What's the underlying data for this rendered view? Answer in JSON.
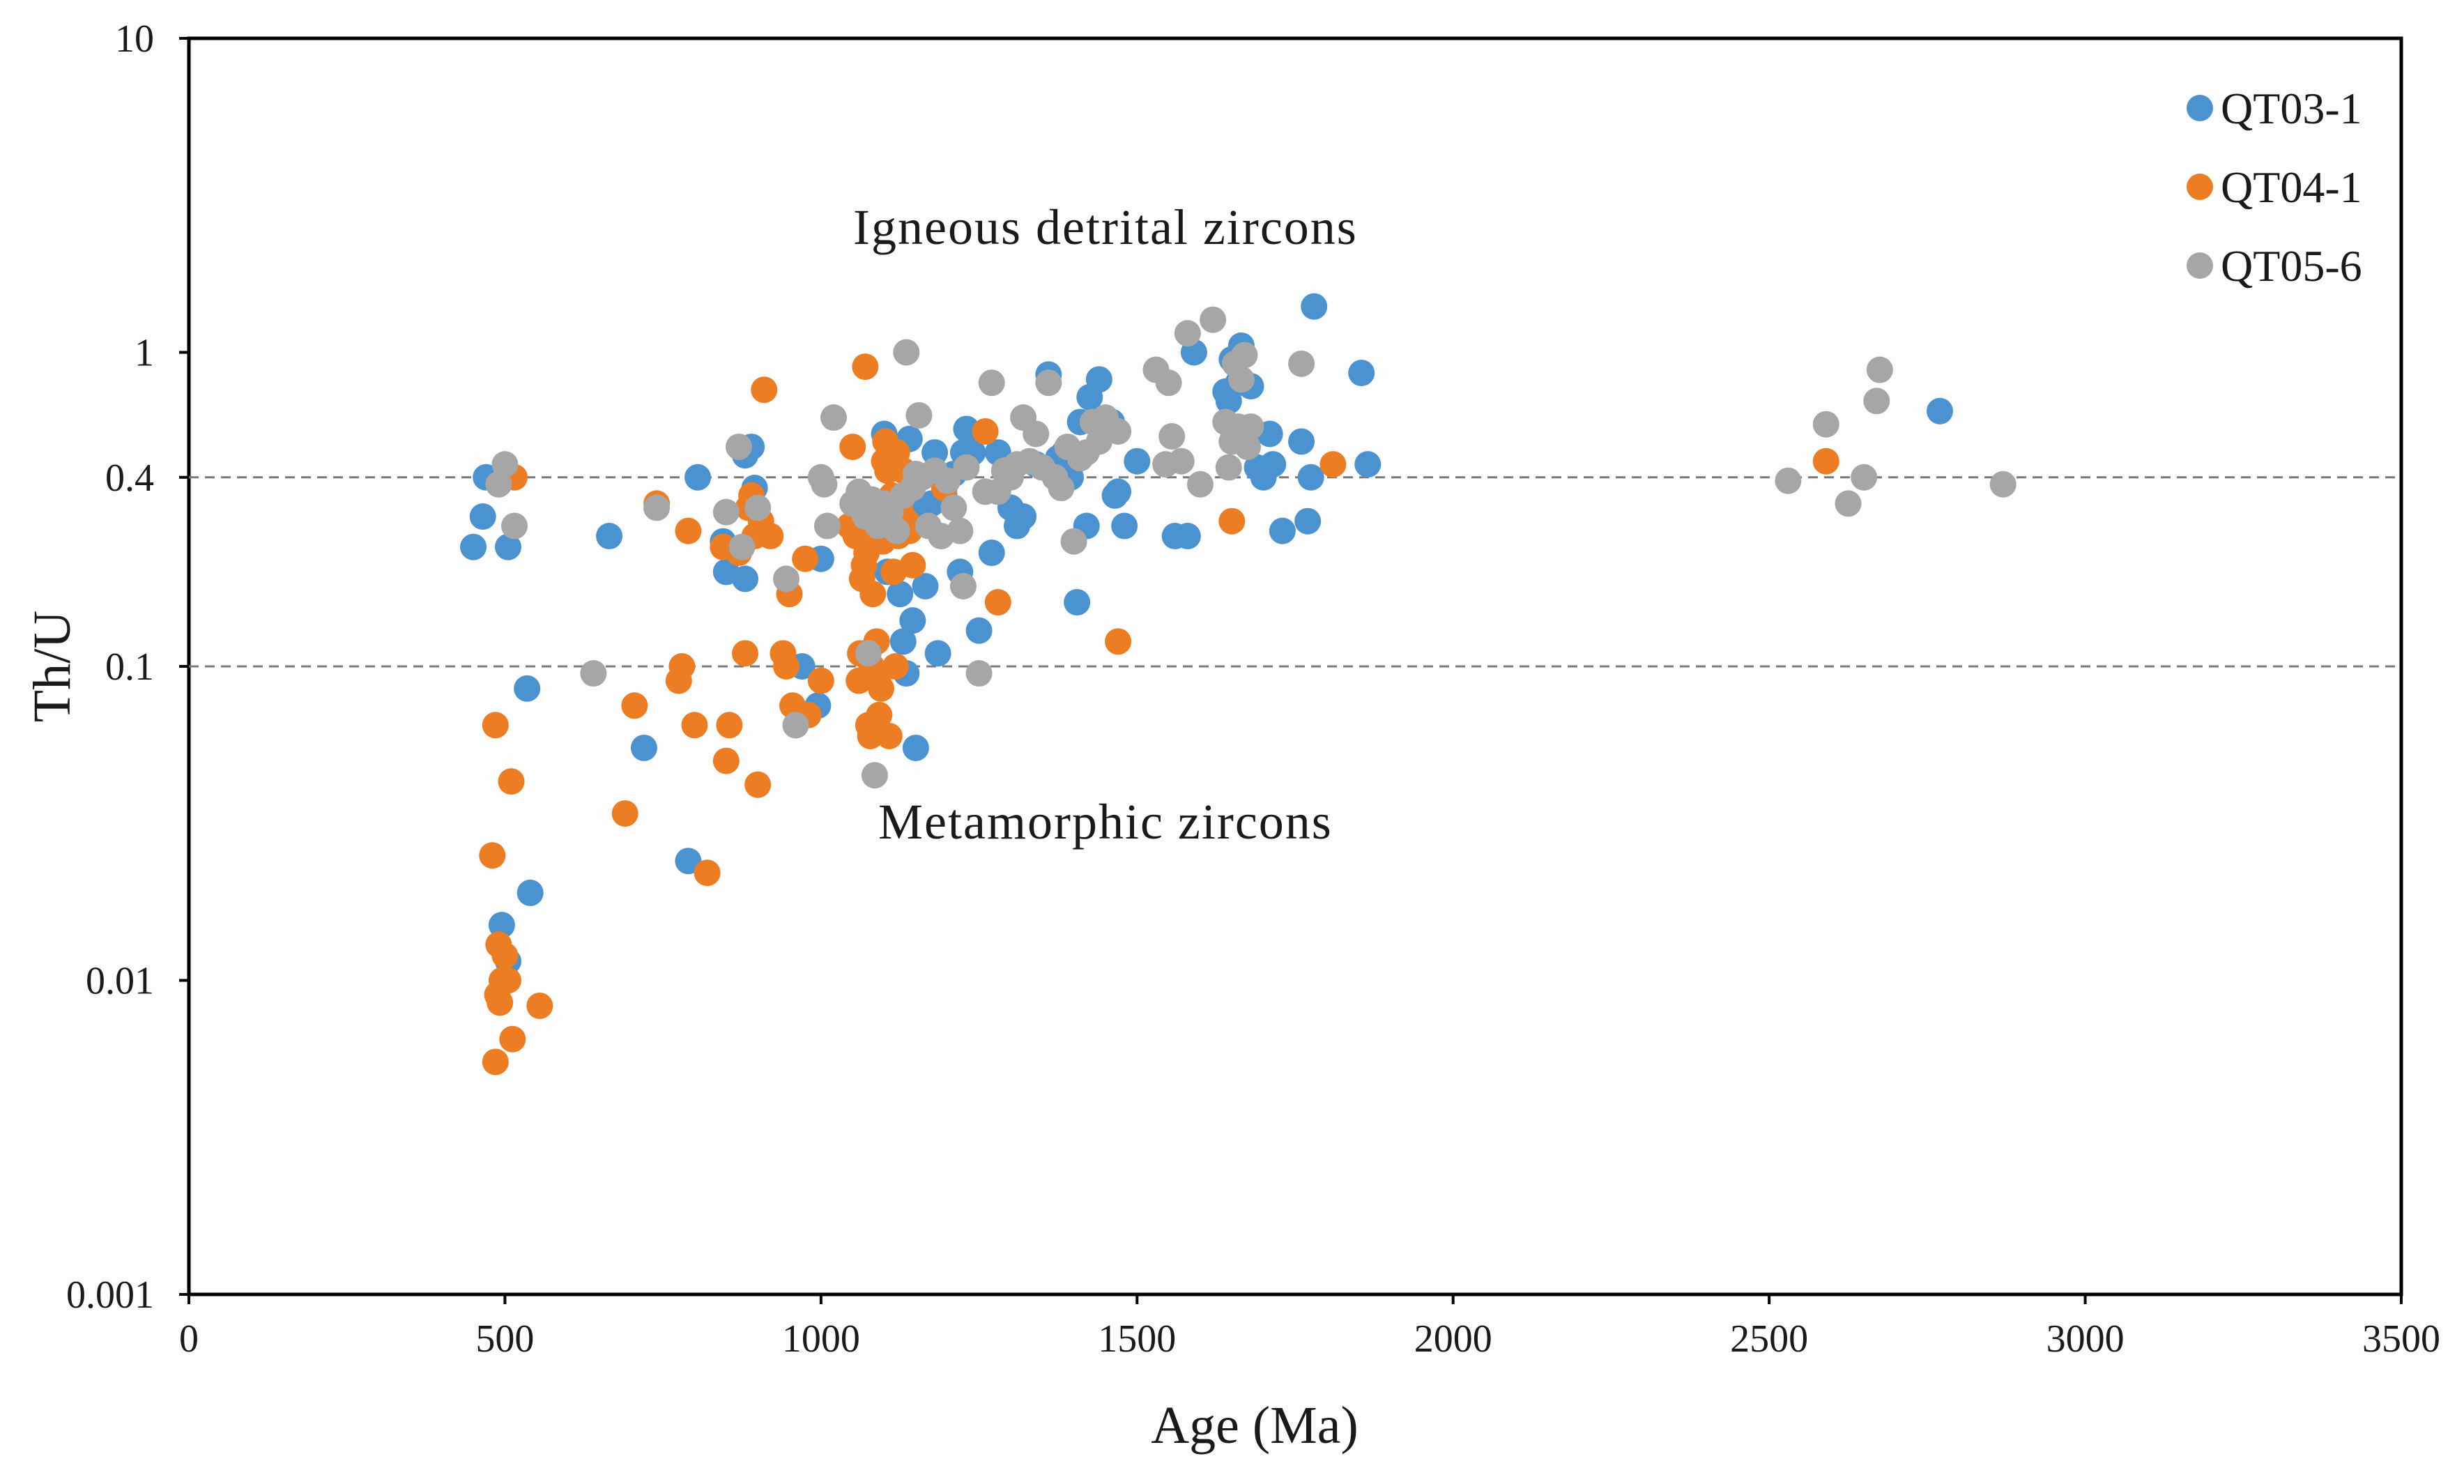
{
  "chart_data": {
    "type": "scatter",
    "title": "",
    "xlabel": "Age (Ma)",
    "ylabel": "Th/U",
    "xlim": [
      0,
      3500
    ],
    "ylim": [
      0.001,
      10
    ],
    "yscale": "log",
    "x_ticks": [
      {
        "value": 0,
        "label": "0"
      },
      {
        "value": 500,
        "label": "500"
      },
      {
        "value": 1000,
        "label": "1000"
      },
      {
        "value": 1500,
        "label": "1500"
      },
      {
        "value": 2000,
        "label": "2000"
      },
      {
        "value": 2500,
        "label": "2500"
      },
      {
        "value": 3000,
        "label": "3000"
      },
      {
        "value": 3500,
        "label": "3500"
      }
    ],
    "y_ticks": [
      {
        "value": 0.001,
        "label": "0.001"
      },
      {
        "value": 0.01,
        "label": "0.01"
      },
      {
        "value": 0.1,
        "label": "0.1"
      },
      {
        "value": 0.4,
        "label": "0.4"
      },
      {
        "value": 1,
        "label": "1"
      },
      {
        "value": 10,
        "label": "10"
      }
    ],
    "reference_lines": [
      {
        "y": 0.4,
        "style": "dashed"
      },
      {
        "y": 0.1,
        "style": "dashed"
      }
    ],
    "annotations": [
      {
        "text": "Igneous detrital zircons",
        "x": 1450,
        "y": 2.5
      },
      {
        "text": "Metamorphic zircons",
        "x": 1450,
        "y": 0.032
      }
    ],
    "legend": {
      "position": "top-right"
    },
    "series": [
      {
        "name": "QT03-1",
        "color": "#4a93d0",
        "points": [
          [
            450,
            0.24
          ],
          [
            465,
            0.3
          ],
          [
            470,
            0.4
          ],
          [
            505,
            0.24
          ],
          [
            535,
            0.085
          ],
          [
            540,
            0.019
          ],
          [
            495,
            0.015
          ],
          [
            505,
            0.0115
          ],
          [
            665,
            0.26
          ],
          [
            720,
            0.055
          ],
          [
            790,
            0.024
          ],
          [
            805,
            0.4
          ],
          [
            845,
            0.25
          ],
          [
            850,
            0.2
          ],
          [
            880,
            0.19
          ],
          [
            880,
            0.47
          ],
          [
            890,
            0.5
          ],
          [
            895,
            0.37
          ],
          [
            970,
            0.1
          ],
          [
            995,
            0.075
          ],
          [
            1000,
            0.22
          ],
          [
            1100,
            0.55
          ],
          [
            1105,
            0.2
          ],
          [
            1110,
            0.48
          ],
          [
            1115,
            0.28
          ],
          [
            1125,
            0.17
          ],
          [
            1130,
            0.12
          ],
          [
            1135,
            0.095
          ],
          [
            1140,
            0.53
          ],
          [
            1145,
            0.14
          ],
          [
            1150,
            0.055
          ],
          [
            1155,
            0.3
          ],
          [
            1160,
            0.32
          ],
          [
            1165,
            0.18
          ],
          [
            1175,
            0.33
          ],
          [
            1180,
            0.48
          ],
          [
            1185,
            0.11
          ],
          [
            1195,
            0.35
          ],
          [
            1210,
            0.41
          ],
          [
            1220,
            0.2
          ],
          [
            1225,
            0.48
          ],
          [
            1230,
            0.57
          ],
          [
            1240,
            0.48
          ],
          [
            1250,
            0.13
          ],
          [
            1270,
            0.23
          ],
          [
            1280,
            0.48
          ],
          [
            1290,
            0.42
          ],
          [
            1300,
            0.32
          ],
          [
            1310,
            0.28
          ],
          [
            1320,
            0.3
          ],
          [
            1340,
            0.44
          ],
          [
            1360,
            0.85
          ],
          [
            1375,
            0.46
          ],
          [
            1385,
            0.48
          ],
          [
            1395,
            0.4
          ],
          [
            1405,
            0.16
          ],
          [
            1410,
            0.6
          ],
          [
            1420,
            0.28
          ],
          [
            1425,
            0.72
          ],
          [
            1440,
            0.82
          ],
          [
            1460,
            0.6
          ],
          [
            1465,
            0.35
          ],
          [
            1470,
            0.36
          ],
          [
            1480,
            0.28
          ],
          [
            1500,
            0.45
          ],
          [
            1560,
            0.26
          ],
          [
            1580,
            0.26
          ],
          [
            1590,
            1.0
          ],
          [
            1640,
            0.75
          ],
          [
            1645,
            0.7
          ],
          [
            1650,
            0.95
          ],
          [
            1660,
            0.8
          ],
          [
            1665,
            1.05
          ],
          [
            1680,
            0.78
          ],
          [
            1690,
            0.43
          ],
          [
            1700,
            0.4
          ],
          [
            1710,
            0.55
          ],
          [
            1715,
            0.44
          ],
          [
            1730,
            0.27
          ],
          [
            1760,
            0.52
          ],
          [
            1770,
            0.29
          ],
          [
            1775,
            0.4
          ],
          [
            1780,
            1.4
          ],
          [
            1855,
            0.86
          ],
          [
            1865,
            0.44
          ],
          [
            2770,
            0.65
          ]
        ]
      },
      {
        "name": "QT04-1",
        "color": "#ed7d23",
        "points": [
          [
            480,
            0.025
          ],
          [
            485,
            0.065
          ],
          [
            485,
            0.0055
          ],
          [
            488,
            0.009
          ],
          [
            490,
            0.013
          ],
          [
            492,
            0.0085
          ],
          [
            495,
            0.01
          ],
          [
            500,
            0.012
          ],
          [
            505,
            0.01
          ],
          [
            510,
            0.043
          ],
          [
            512,
            0.0065
          ],
          [
            515,
            0.4
          ],
          [
            555,
            0.0083
          ],
          [
            690,
            0.034
          ],
          [
            705,
            0.075
          ],
          [
            740,
            0.33
          ],
          [
            775,
            0.09
          ],
          [
            780,
            0.1
          ],
          [
            790,
            0.27
          ],
          [
            800,
            0.065
          ],
          [
            820,
            0.022
          ],
          [
            845,
            0.24
          ],
          [
            850,
            0.05
          ],
          [
            855,
            0.065
          ],
          [
            870,
            0.23
          ],
          [
            880,
            0.11
          ],
          [
            885,
            0.32
          ],
          [
            890,
            0.35
          ],
          [
            895,
            0.26
          ],
          [
            900,
            0.042
          ],
          [
            905,
            0.29
          ],
          [
            910,
            0.76
          ],
          [
            920,
            0.26
          ],
          [
            940,
            0.11
          ],
          [
            945,
            0.1
          ],
          [
            950,
            0.17
          ],
          [
            955,
            0.075
          ],
          [
            960,
            0.065
          ],
          [
            975,
            0.22
          ],
          [
            980,
            0.07
          ],
          [
            1000,
            0.09
          ],
          [
            1045,
            0.28
          ],
          [
            1050,
            0.5
          ],
          [
            1055,
            0.26
          ],
          [
            1060,
            0.09
          ],
          [
            1062,
            0.11
          ],
          [
            1065,
            0.19
          ],
          [
            1068,
            0.21
          ],
          [
            1070,
            0.9
          ],
          [
            1072,
            0.23
          ],
          [
            1075,
            0.065
          ],
          [
            1078,
            0.06
          ],
          [
            1080,
            0.1
          ],
          [
            1082,
            0.17
          ],
          [
            1085,
            0.27
          ],
          [
            1088,
            0.12
          ],
          [
            1090,
            0.09
          ],
          [
            1092,
            0.07
          ],
          [
            1095,
            0.085
          ],
          [
            1098,
            0.25
          ],
          [
            1100,
            0.45
          ],
          [
            1102,
            0.52
          ],
          [
            1105,
            0.42
          ],
          [
            1108,
            0.06
          ],
          [
            1110,
            0.3
          ],
          [
            1112,
            0.35
          ],
          [
            1115,
            0.2
          ],
          [
            1118,
            0.1
          ],
          [
            1120,
            0.48
          ],
          [
            1122,
            0.26
          ],
          [
            1125,
            0.32
          ],
          [
            1130,
            0.42
          ],
          [
            1135,
            0.29
          ],
          [
            1140,
            0.27
          ],
          [
            1145,
            0.21
          ],
          [
            1195,
            0.37
          ],
          [
            1260,
            0.56
          ],
          [
            1280,
            0.16
          ],
          [
            1650,
            0.29
          ],
          [
            1470,
            0.12
          ],
          [
            1810,
            0.44
          ],
          [
            2590,
            0.45
          ]
        ]
      },
      {
        "name": "QT05-6",
        "color": "#a6a6a6",
        "points": [
          [
            490,
            0.38
          ],
          [
            500,
            0.44
          ],
          [
            515,
            0.28
          ],
          [
            640,
            0.095
          ],
          [
            740,
            0.32
          ],
          [
            850,
            0.31
          ],
          [
            870,
            0.5
          ],
          [
            875,
            0.24
          ],
          [
            900,
            0.32
          ],
          [
            945,
            0.19
          ],
          [
            960,
            0.065
          ],
          [
            1000,
            0.4
          ],
          [
            1005,
            0.38
          ],
          [
            1010,
            0.28
          ],
          [
            1020,
            0.62
          ],
          [
            1050,
            0.33
          ],
          [
            1060,
            0.36
          ],
          [
            1070,
            0.3
          ],
          [
            1075,
            0.11
          ],
          [
            1080,
            0.34
          ],
          [
            1085,
            0.045
          ],
          [
            1090,
            0.28
          ],
          [
            1095,
            0.31
          ],
          [
            1100,
            0.33
          ],
          [
            1110,
            0.31
          ],
          [
            1120,
            0.27
          ],
          [
            1130,
            0.35
          ],
          [
            1135,
            1.0
          ],
          [
            1145,
            0.37
          ],
          [
            1150,
            0.41
          ],
          [
            1155,
            0.63
          ],
          [
            1160,
            0.4
          ],
          [
            1170,
            0.28
          ],
          [
            1180,
            0.42
          ],
          [
            1190,
            0.26
          ],
          [
            1200,
            0.39
          ],
          [
            1210,
            0.32
          ],
          [
            1220,
            0.27
          ],
          [
            1225,
            0.18
          ],
          [
            1230,
            0.43
          ],
          [
            1250,
            0.095
          ],
          [
            1260,
            0.36
          ],
          [
            1270,
            0.8
          ],
          [
            1280,
            0.36
          ],
          [
            1290,
            0.42
          ],
          [
            1300,
            0.4
          ],
          [
            1310,
            0.44
          ],
          [
            1320,
            0.62
          ],
          [
            1330,
            0.45
          ],
          [
            1340,
            0.55
          ],
          [
            1350,
            0.43
          ],
          [
            1360,
            0.8
          ],
          [
            1370,
            0.4
          ],
          [
            1380,
            0.37
          ],
          [
            1390,
            0.5
          ],
          [
            1400,
            0.25
          ],
          [
            1410,
            0.46
          ],
          [
            1420,
            0.48
          ],
          [
            1430,
            0.6
          ],
          [
            1440,
            0.52
          ],
          [
            1450,
            0.62
          ],
          [
            1470,
            0.56
          ],
          [
            1530,
            0.88
          ],
          [
            1545,
            0.44
          ],
          [
            1550,
            0.8
          ],
          [
            1555,
            0.54
          ],
          [
            1570,
            0.45
          ],
          [
            1580,
            1.15
          ],
          [
            1600,
            0.38
          ],
          [
            1620,
            1.27
          ],
          [
            1640,
            0.6
          ],
          [
            1645,
            0.43
          ],
          [
            1650,
            0.52
          ],
          [
            1655,
            0.92
          ],
          [
            1660,
            0.58
          ],
          [
            1665,
            0.82
          ],
          [
            1670,
            0.98
          ],
          [
            1675,
            0.5
          ],
          [
            1680,
            0.58
          ],
          [
            1760,
            0.92
          ],
          [
            2530,
            0.39
          ],
          [
            2590,
            0.59
          ],
          [
            2625,
            0.33
          ],
          [
            2650,
            0.4
          ],
          [
            2670,
            0.7
          ],
          [
            2675,
            0.88
          ],
          [
            2870,
            0.38
          ]
        ]
      }
    ]
  }
}
